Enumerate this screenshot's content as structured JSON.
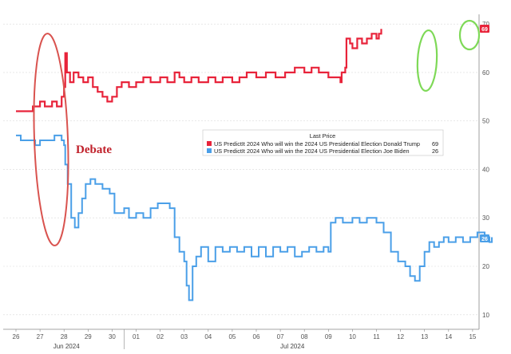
{
  "chart_data": {
    "type": "line",
    "x_tick_labels": [
      "26",
      "27",
      "28",
      "29",
      "30",
      "01",
      "02",
      "03",
      "04",
      "05",
      "06",
      "07",
      "08",
      "09",
      "10",
      "11",
      "12",
      "13",
      "14",
      "15"
    ],
    "month_labels": [
      "Jun 2024",
      "Jul 2024"
    ],
    "yticks": [
      10,
      20,
      30,
      40,
      50,
      60,
      70
    ],
    "ylim": [
      7,
      72
    ],
    "grid": true,
    "legend": {
      "title": "Last Price",
      "placement": "center-right"
    },
    "annotations": {
      "debate_text": "Debate"
    },
    "series": [
      {
        "name": "US PredictIt 2024 Who will win the 2024 US Presidential Election Donald Trump",
        "color": "#e8233a",
        "last": "69",
        "points": [
          [
            0.0,
            52
          ],
          [
            0.2,
            52
          ],
          [
            0.5,
            52
          ],
          [
            0.7,
            53
          ],
          [
            1.0,
            54
          ],
          [
            1.2,
            53
          ],
          [
            1.5,
            54
          ],
          [
            1.7,
            53
          ],
          [
            1.9,
            55
          ],
          [
            2.0,
            57
          ],
          [
            2.05,
            64
          ],
          [
            2.12,
            60
          ],
          [
            2.25,
            58
          ],
          [
            2.4,
            60
          ],
          [
            2.6,
            59
          ],
          [
            2.8,
            58
          ],
          [
            3.0,
            59
          ],
          [
            3.2,
            57
          ],
          [
            3.4,
            56
          ],
          [
            3.6,
            55
          ],
          [
            3.8,
            54
          ],
          [
            4.0,
            55
          ],
          [
            4.2,
            57
          ],
          [
            4.4,
            58
          ],
          [
            4.7,
            57
          ],
          [
            5.0,
            58
          ],
          [
            5.3,
            59
          ],
          [
            5.6,
            58
          ],
          [
            6.0,
            59
          ],
          [
            6.3,
            58
          ],
          [
            6.6,
            60
          ],
          [
            6.8,
            59
          ],
          [
            7.0,
            58
          ],
          [
            7.3,
            59
          ],
          [
            7.6,
            58
          ],
          [
            8.0,
            59
          ],
          [
            8.3,
            58
          ],
          [
            8.6,
            59
          ],
          [
            9.0,
            58
          ],
          [
            9.3,
            59
          ],
          [
            9.6,
            60
          ],
          [
            10.0,
            59
          ],
          [
            10.4,
            60
          ],
          [
            10.8,
            59
          ],
          [
            11.2,
            60
          ],
          [
            11.6,
            61
          ],
          [
            12.0,
            60
          ],
          [
            12.3,
            61
          ],
          [
            12.6,
            60
          ],
          [
            13.0,
            59
          ],
          [
            13.3,
            59
          ],
          [
            13.5,
            58
          ],
          [
            13.55,
            60
          ],
          [
            13.7,
            61
          ],
          [
            13.75,
            67
          ],
          [
            13.9,
            66
          ],
          [
            14.0,
            65
          ],
          [
            14.2,
            67
          ],
          [
            14.4,
            66
          ],
          [
            14.6,
            67
          ],
          [
            14.8,
            68
          ],
          [
            15.0,
            67
          ],
          [
            15.1,
            68
          ],
          [
            15.2,
            69
          ]
        ]
      },
      {
        "name": "US PredictIt 2024 Who will win the 2024 US Presidential Election Joe Biden",
        "color": "#4a9fe8",
        "last": "26",
        "points": [
          [
            0.0,
            47
          ],
          [
            0.2,
            46
          ],
          [
            0.5,
            46
          ],
          [
            0.8,
            45
          ],
          [
            1.0,
            46
          ],
          [
            1.3,
            46
          ],
          [
            1.6,
            47
          ],
          [
            1.9,
            46
          ],
          [
            2.0,
            45
          ],
          [
            2.05,
            41
          ],
          [
            2.15,
            37
          ],
          [
            2.3,
            30
          ],
          [
            2.45,
            28
          ],
          [
            2.6,
            31
          ],
          [
            2.75,
            34
          ],
          [
            2.9,
            37
          ],
          [
            3.1,
            38
          ],
          [
            3.3,
            37
          ],
          [
            3.6,
            36
          ],
          [
            3.9,
            35
          ],
          [
            4.1,
            31
          ],
          [
            4.3,
            31
          ],
          [
            4.5,
            32
          ],
          [
            4.7,
            30
          ],
          [
            5.0,
            31
          ],
          [
            5.3,
            30
          ],
          [
            5.6,
            32
          ],
          [
            5.9,
            33
          ],
          [
            6.2,
            33
          ],
          [
            6.4,
            32
          ],
          [
            6.6,
            26
          ],
          [
            6.8,
            23
          ],
          [
            7.0,
            21
          ],
          [
            7.1,
            16
          ],
          [
            7.2,
            13
          ],
          [
            7.35,
            20
          ],
          [
            7.5,
            22
          ],
          [
            7.7,
            24
          ],
          [
            8.0,
            21
          ],
          [
            8.3,
            24
          ],
          [
            8.6,
            23
          ],
          [
            8.9,
            24
          ],
          [
            9.2,
            23
          ],
          [
            9.5,
            24
          ],
          [
            9.8,
            22
          ],
          [
            10.1,
            24
          ],
          [
            10.4,
            22
          ],
          [
            10.7,
            24
          ],
          [
            11.0,
            23
          ],
          [
            11.3,
            24
          ],
          [
            11.6,
            22
          ],
          [
            11.9,
            23
          ],
          [
            12.2,
            24
          ],
          [
            12.5,
            23
          ],
          [
            12.8,
            24
          ],
          [
            13.0,
            23
          ],
          [
            13.1,
            29
          ],
          [
            13.3,
            30
          ],
          [
            13.6,
            29
          ],
          [
            14.0,
            30
          ],
          [
            14.3,
            29
          ],
          [
            14.6,
            30
          ],
          [
            15.0,
            29
          ],
          [
            15.3,
            27
          ],
          [
            15.6,
            23
          ],
          [
            15.9,
            21
          ],
          [
            16.2,
            20
          ],
          [
            16.4,
            18
          ],
          [
            16.6,
            17
          ],
          [
            16.8,
            20
          ],
          [
            17.0,
            23
          ],
          [
            17.2,
            25
          ],
          [
            17.4,
            24
          ],
          [
            17.6,
            25
          ],
          [
            17.8,
            26
          ],
          [
            18.0,
            25
          ],
          [
            18.3,
            26
          ],
          [
            18.6,
            25
          ],
          [
            18.9,
            26
          ],
          [
            19.2,
            27
          ],
          [
            19.5,
            26
          ],
          [
            19.7,
            25
          ],
          [
            19.8,
            26
          ]
        ]
      }
    ]
  }
}
